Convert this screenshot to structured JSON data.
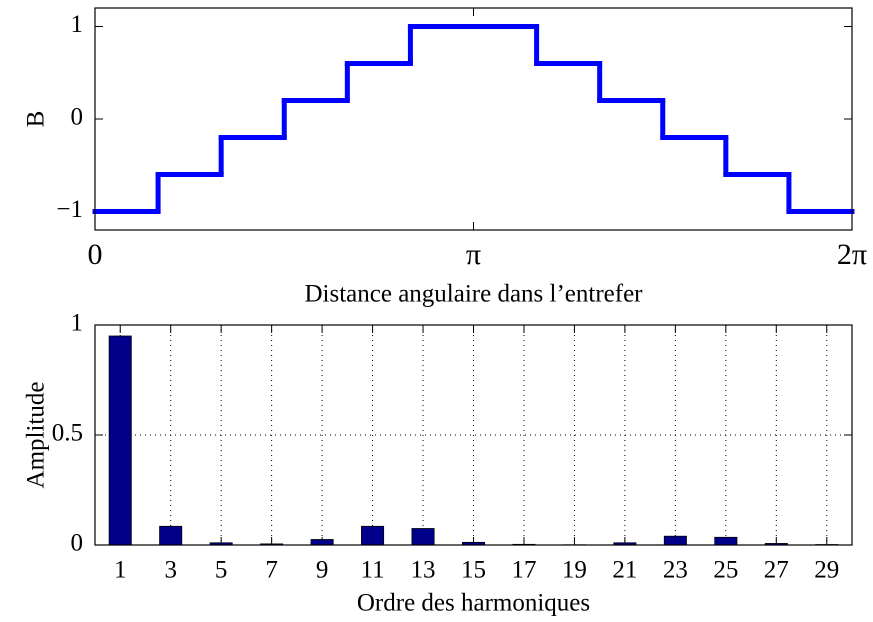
{
  "chart_data": [
    {
      "type": "line",
      "drawstyle": "steps-post",
      "color": "#0000ff",
      "x": [
        0,
        0.5236,
        1.0472,
        1.5708,
        2.0944,
        2.618,
        3.6652,
        4.1888,
        4.7124,
        5.236,
        5.7596
      ],
      "values": [
        -1,
        -0.6,
        -0.2,
        0.2,
        0.6,
        1,
        0.6,
        0.2,
        -0.2,
        -0.6,
        -1
      ],
      "xlim": [
        0,
        6.2832
      ],
      "xticks": [
        0,
        {
          "value": 3.1416,
          "label": "π"
        },
        {
          "value": 6.2832,
          "label": "2π"
        }
      ],
      "ylim": [
        -1.2,
        1.2
      ],
      "yticks": [
        {
          "value": -1,
          "label": "−1"
        },
        0,
        1
      ],
      "xlabel": "Distance angulaire dans l’entrefer",
      "ylabel": "B",
      "grid": false
    },
    {
      "type": "bar",
      "color": "#00008b",
      "x": [
        1,
        3,
        5,
        7,
        9,
        11,
        13,
        15,
        17,
        19,
        21,
        23,
        25,
        27,
        29
      ],
      "values": [
        0.95,
        0.085,
        0.01,
        0.005,
        0.025,
        0.085,
        0.075,
        0.012,
        0.003,
        0.001,
        0.01,
        0.04,
        0.035,
        0.007,
        0.002
      ],
      "xlim": [
        0,
        30
      ],
      "xticks": [
        1,
        3,
        5,
        7,
        9,
        11,
        13,
        15,
        17,
        19,
        21,
        23,
        25,
        27,
        29
      ],
      "ylim": [
        0,
        1
      ],
      "yticks": [
        0,
        0.5,
        1
      ],
      "xlabel": "Ordre des harmoniques",
      "ylabel": "Amplitude",
      "grid": true
    }
  ]
}
